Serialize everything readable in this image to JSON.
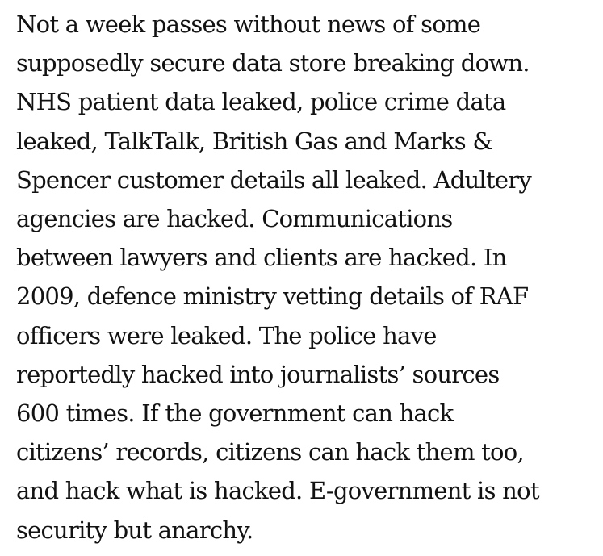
{
  "article": {
    "lines": [
      "Not a week passes without news of some",
      "supposedly secure data store breaking down.",
      "NHS patient data leaked, police crime data",
      "leaked, TalkTalk, British Gas and Marks &",
      "Spencer customer details all leaked. Adultery",
      "agencies are hacked. Communications",
      "between lawyers and clients are hacked. In",
      "2009, defence ministry vetting details of RAF",
      "officers were leaked. The police have",
      "reportedly hacked into journalists’ sources",
      "600 times. If the government can hack",
      "citizens’ records, citizens can hack them too,",
      "and hack what is hacked. E-government is not",
      "security but anarchy."
    ]
  }
}
